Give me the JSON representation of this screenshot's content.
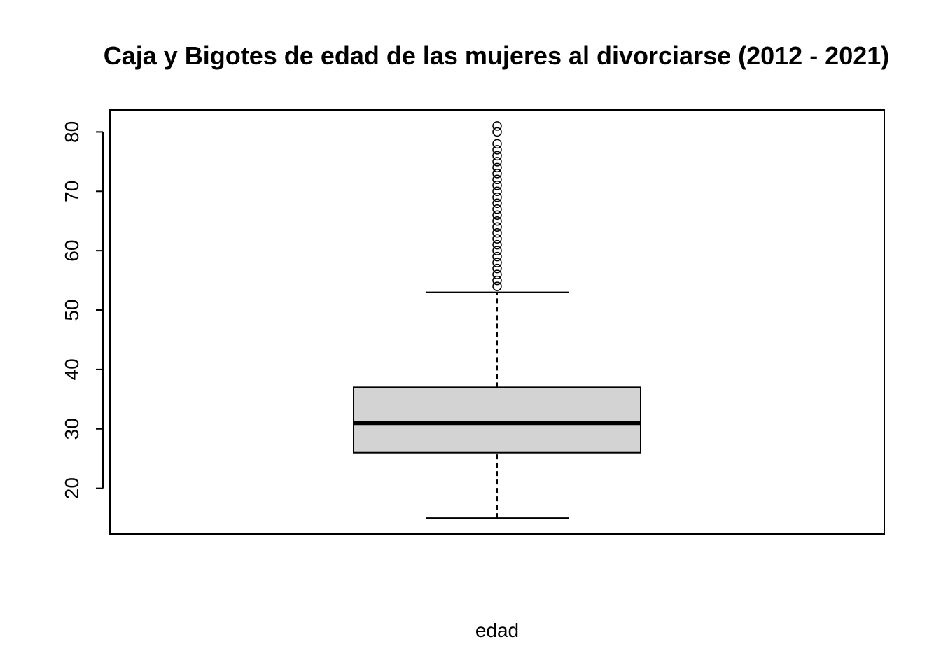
{
  "chart_data": {
    "type": "boxplot",
    "title": "Caja y Bigotes de edad de las mujeres al divorciarse (2012 - 2021)",
    "xlabel": "edad",
    "ylabel": "",
    "ylim": [
      12.3,
      83.7
    ],
    "yticks": [
      20,
      30,
      40,
      50,
      60,
      70,
      80
    ],
    "grid": false,
    "box": {
      "min": 15,
      "q1": 26,
      "median": 31,
      "q3": 37,
      "max": 53,
      "fill": "#d3d3d3"
    },
    "outliers": [
      54,
      55,
      56,
      57,
      58,
      59,
      60,
      61,
      62,
      63,
      64,
      65,
      66,
      67,
      68,
      69,
      70,
      71,
      72,
      73,
      74,
      75,
      76,
      77,
      78,
      80,
      81
    ]
  }
}
